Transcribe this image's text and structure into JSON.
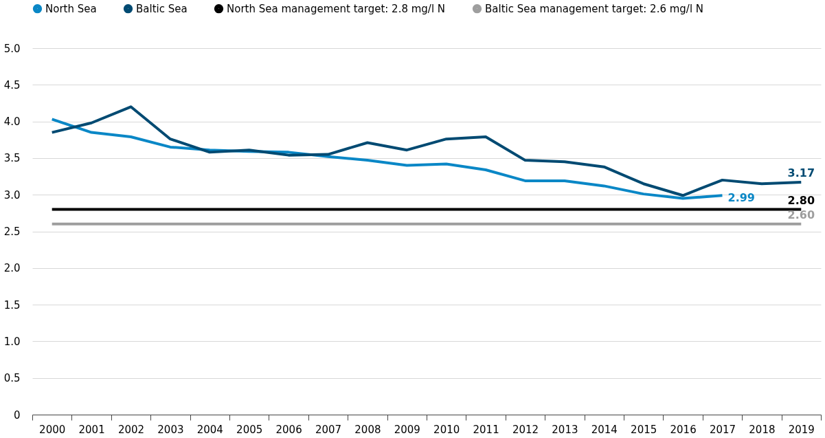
{
  "chart_data": {
    "type": "line",
    "categories": [
      "2000",
      "2001",
      "2002",
      "2003",
      "2004",
      "2005",
      "2006",
      "2007",
      "2008",
      "2009",
      "2010",
      "2011",
      "2012",
      "2013",
      "2014",
      "2015",
      "2016",
      "2017",
      "2018",
      "2019"
    ],
    "series": [
      {
        "name": "North Sea",
        "color": "#0a87c6",
        "values": [
          4.03,
          3.85,
          3.79,
          3.65,
          3.61,
          3.59,
          3.58,
          3.52,
          3.47,
          3.4,
          3.42,
          3.34,
          3.19,
          3.19,
          3.12,
          3.01,
          2.95,
          2.99,
          null,
          null
        ],
        "value_labels": [
          null,
          null,
          null,
          null,
          null,
          null,
          null,
          null,
          null,
          null,
          null,
          null,
          null,
          null,
          null,
          null,
          null,
          "2.99",
          null,
          null
        ]
      },
      {
        "name": "Baltic Sea",
        "color": "#004a72",
        "values": [
          3.85,
          3.98,
          4.2,
          3.76,
          3.58,
          3.61,
          3.54,
          3.55,
          3.71,
          3.61,
          3.76,
          3.79,
          3.47,
          3.45,
          3.38,
          3.15,
          2.99,
          3.2,
          3.15,
          3.17
        ],
        "value_labels": [
          null,
          null,
          null,
          null,
          null,
          null,
          null,
          null,
          null,
          null,
          null,
          null,
          null,
          null,
          null,
          null,
          null,
          null,
          null,
          "3.17"
        ]
      },
      {
        "name": "North Sea management target: 2.8 mg/l N",
        "color": "#000000",
        "values": [
          2.8,
          2.8,
          2.8,
          2.8,
          2.8,
          2.8,
          2.8,
          2.8,
          2.8,
          2.8,
          2.8,
          2.8,
          2.8,
          2.8,
          2.8,
          2.8,
          2.8,
          2.8,
          2.8,
          2.8
        ],
        "value_labels": [
          null,
          null,
          null,
          null,
          null,
          null,
          null,
          null,
          null,
          null,
          null,
          null,
          null,
          null,
          null,
          null,
          null,
          null,
          null,
          "2.80"
        ]
      },
      {
        "name": "Baltic Sea management target: 2.6 mg/l N",
        "color": "#9e9e9e",
        "values": [
          2.6,
          2.6,
          2.6,
          2.6,
          2.6,
          2.6,
          2.6,
          2.6,
          2.6,
          2.6,
          2.6,
          2.6,
          2.6,
          2.6,
          2.6,
          2.6,
          2.6,
          2.6,
          2.6,
          2.6
        ],
        "value_labels": [
          null,
          null,
          null,
          null,
          null,
          null,
          null,
          null,
          null,
          null,
          null,
          null,
          null,
          null,
          null,
          null,
          null,
          null,
          null,
          "2.60"
        ]
      }
    ],
    "ylim": [
      0,
      5
    ],
    "yticks": [
      0,
      {
        "value": 0.5,
        "label": "0.5"
      },
      {
        "value": 1,
        "label": "1.0"
      },
      {
        "value": 1.5,
        "label": "1.5"
      },
      {
        "value": 2,
        "label": "2.0"
      },
      {
        "value": 2.5,
        "label": "2.5"
      },
      {
        "value": 3,
        "label": "3.0"
      },
      {
        "value": 3.5,
        "label": "3.5"
      },
      {
        "value": 4,
        "label": "4.0"
      },
      {
        "value": 4.5,
        "label": "4.5"
      },
      {
        "value": 5,
        "label": "5.0"
      }
    ],
    "grid": "y",
    "legend": "top left",
    "marker": "none",
    "line_style": "solid"
  }
}
